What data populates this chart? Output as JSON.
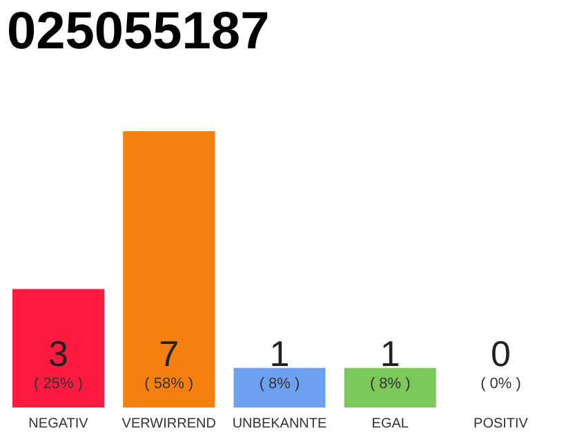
{
  "chart_data": {
    "type": "bar",
    "title": "025055187",
    "categories": [
      "NEGATIV",
      "VERWIRREND",
      "UNBEKANNTE",
      "EGAL",
      "POSITIV"
    ],
    "values": [
      3,
      7,
      1,
      1,
      0
    ],
    "colors": [
      "#ff1a40",
      "#f57f0f",
      "#6ea0f0",
      "#7dc85a",
      "#eeeeee"
    ],
    "data_labels": true,
    "annotations": [
      "( 25% )",
      "( 58% )",
      "( 8% )",
      "( 8% )",
      "( 0% )"
    ],
    "tick_labels": "x"
  }
}
